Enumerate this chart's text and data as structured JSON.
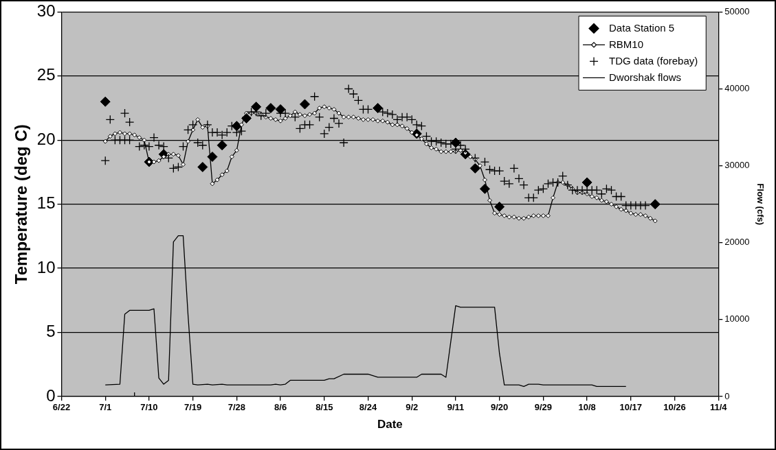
{
  "chart_data": {
    "type": "line",
    "xlabel": "Date",
    "ylabel": "Temperature (deg C)",
    "y2label": "Flow (cfs)",
    "xlim": [
      "--06-22",
      "--11-04"
    ],
    "xticks": [
      {
        "value": "--06-22",
        "label": "6/22"
      },
      {
        "value": "--07-01",
        "label": "7/1"
      },
      {
        "value": "--07-10",
        "label": "7/10"
      },
      {
        "value": "--07-19",
        "label": "7/19"
      },
      {
        "value": "--07-28",
        "label": "7/28"
      },
      {
        "value": "--08-06",
        "label": "8/6"
      },
      {
        "value": "--08-15",
        "label": "8/15"
      },
      {
        "value": "--08-24",
        "label": "8/24"
      },
      {
        "value": "--09-02",
        "label": "9/2"
      },
      {
        "value": "--09-11",
        "label": "9/11"
      },
      {
        "value": "--09-20",
        "label": "9/20"
      },
      {
        "value": "--09-29",
        "label": "9/29"
      },
      {
        "value": "--10-08",
        "label": "10/8"
      },
      {
        "value": "--10-17",
        "label": "10/17"
      },
      {
        "value": "--10-26",
        "label": "10/26"
      },
      {
        "value": "--11-04",
        "label": "11/4"
      }
    ],
    "ylim": [
      0,
      30
    ],
    "yticks": [
      0,
      5,
      10,
      15,
      20,
      25,
      30
    ],
    "y2lim": [
      0,
      50000
    ],
    "y2ticks": [
      0,
      10000,
      20000,
      30000,
      40000,
      50000
    ],
    "grid": "y",
    "legend": "top right",
    "series": [
      {
        "name": "Data Station 5",
        "type": "scatter",
        "marker": "diamond",
        "color": "#000000",
        "x": [
          "--07-01",
          "--07-10",
          "--07-13",
          "--07-21",
          "--07-23",
          "--07-25",
          "--07-28",
          "--07-30",
          "--08-01",
          "--08-04",
          "--08-06",
          "--08-11",
          "--08-26",
          "--09-03",
          "--09-11",
          "--09-13",
          "--09-15",
          "--09-17",
          "--09-20",
          "--10-08",
          "--10-22"
        ],
        "values": [
          23.0,
          18.3,
          18.9,
          17.9,
          18.7,
          19.6,
          21.1,
          21.7,
          22.6,
          22.5,
          22.4,
          22.8,
          22.5,
          20.5,
          19.8,
          18.9,
          17.8,
          16.2,
          14.8,
          16.7,
          15.0
        ]
      },
      {
        "name": "RBM10",
        "type": "line",
        "marker": "diamond",
        "color": "#000000",
        "x": [
          "--07-01",
          "--07-02",
          "--07-03",
          "--07-04",
          "--07-05",
          "--07-06",
          "--07-07",
          "--07-08",
          "--07-09",
          "--07-10",
          "--07-11",
          "--07-12",
          "--07-13",
          "--07-14",
          "--07-15",
          "--07-16",
          "--07-17",
          "--07-18",
          "--07-19",
          "--07-20",
          "--07-21",
          "--07-22",
          "--07-23",
          "--07-24",
          "--07-25",
          "--07-26",
          "--07-27",
          "--07-28",
          "--07-29",
          "--07-30",
          "--07-31",
          "--08-01",
          "--08-02",
          "--08-03",
          "--08-04",
          "--08-05",
          "--08-06",
          "--08-07",
          "--08-08",
          "--08-09",
          "--08-10",
          "--08-11",
          "--08-12",
          "--08-13",
          "--08-14",
          "--08-15",
          "--08-16",
          "--08-17",
          "--08-18",
          "--08-19",
          "--08-20",
          "--08-21",
          "--08-22",
          "--08-23",
          "--08-24",
          "--08-25",
          "--08-26",
          "--08-27",
          "--08-28",
          "--08-29",
          "--08-30",
          "--08-31",
          "--09-01",
          "--09-02",
          "--09-03",
          "--09-04",
          "--09-05",
          "--09-06",
          "--09-07",
          "--09-08",
          "--09-09",
          "--09-10",
          "--09-11",
          "--09-12",
          "--09-13",
          "--09-14",
          "--09-15",
          "--09-16",
          "--09-17",
          "--09-18",
          "--09-19",
          "--09-20",
          "--09-21",
          "--09-22",
          "--09-23",
          "--09-24",
          "--09-25",
          "--09-26",
          "--09-27",
          "--09-28",
          "--09-29",
          "--09-30",
          "--10-01",
          "--10-02",
          "--10-03",
          "--10-04",
          "--10-05",
          "--10-06",
          "--10-07",
          "--10-08",
          "--10-09",
          "--10-10",
          "--10-11",
          "--10-12",
          "--10-13",
          "--10-14",
          "--10-15",
          "--10-16",
          "--10-17",
          "--10-18",
          "--10-19",
          "--10-20",
          "--10-21",
          "--10-22"
        ],
        "values": [
          19.9,
          20.3,
          20.5,
          20.6,
          20.5,
          20.5,
          20.4,
          20.2,
          20.0,
          18.3,
          18.3,
          18.4,
          18.7,
          18.9,
          18.9,
          18.8,
          18.1,
          19.9,
          20.8,
          21.6,
          21.0,
          21.1,
          16.6,
          16.9,
          17.3,
          17.6,
          18.7,
          19.2,
          21.2,
          22.1,
          22.1,
          22.1,
          22.0,
          21.8,
          21.7,
          21.6,
          21.5,
          21.7,
          21.9,
          22.2,
          22.0,
          21.9,
          22.0,
          22.1,
          22.5,
          22.6,
          22.5,
          22.4,
          22.1,
          21.8,
          21.8,
          21.8,
          21.7,
          21.6,
          21.6,
          21.6,
          21.5,
          21.5,
          21.4,
          21.2,
          21.2,
          21.1,
          20.9,
          20.6,
          20.4,
          20.1,
          19.7,
          19.4,
          19.3,
          19.1,
          19.1,
          19.1,
          19.1,
          19.2,
          19.0,
          18.7,
          18.5,
          18.0,
          16.9,
          15.3,
          14.3,
          14.2,
          14.1,
          14.0,
          14.0,
          13.9,
          13.9,
          14.0,
          14.1,
          14.1,
          14.1,
          14.1,
          15.5,
          16.7,
          16.7,
          16.5,
          16.2,
          15.9,
          15.9,
          15.8,
          15.6,
          15.5,
          15.3,
          15.2,
          15.0,
          14.8,
          14.6,
          14.5,
          14.3,
          14.2,
          14.2,
          14.1,
          13.9,
          13.7
        ]
      },
      {
        "name": "TDG data (forebay)",
        "type": "scatter",
        "marker": "cross",
        "color": "#000000",
        "x": [
          "--07-01",
          "--07-02",
          "--07-03",
          "--07-04",
          "--07-05",
          "--07-05",
          "--07-06",
          "--07-06",
          "--07-07",
          "--07-08",
          "--07-09",
          "--07-10",
          "--07-11",
          "--07-12",
          "--07-13",
          "--07-14",
          "--07-15",
          "--07-16",
          "--07-17",
          "--07-18",
          "--07-19",
          "--07-20",
          "--07-21",
          "--07-22",
          "--07-23",
          "--07-24",
          "--07-25",
          "--07-26",
          "--07-27",
          "--07-28",
          "--07-29",
          "--07-30",
          "--07-31",
          "--08-01",
          "--08-02",
          "--08-03",
          "--08-06",
          "--08-07",
          "--08-09",
          "--08-10",
          "--08-11",
          "--08-12",
          "--08-13",
          "--08-14",
          "--08-15",
          "--08-16",
          "--08-17",
          "--08-18",
          "--08-19",
          "--08-20",
          "--08-21",
          "--08-22",
          "--08-23",
          "--08-24",
          "--08-27",
          "--08-28",
          "--08-29",
          "--08-30",
          "--08-31",
          "--09-01",
          "--09-02",
          "--09-03",
          "--09-04",
          "--09-05",
          "--09-06",
          "--09-07",
          "--09-08",
          "--09-09",
          "--09-10",
          "--09-11",
          "--09-12",
          "--09-13",
          "--09-15",
          "--09-17",
          "--09-18",
          "--09-19",
          "--09-20",
          "--09-21",
          "--09-22",
          "--09-23",
          "--09-24",
          "--09-25",
          "--09-26",
          "--09-27",
          "--09-28",
          "--09-29",
          "--09-30",
          "--10-01",
          "--10-02",
          "--10-03",
          "--10-04",
          "--10-05",
          "--10-06",
          "--10-07",
          "--10-08",
          "--10-09",
          "--10-10",
          "--10-11",
          "--10-12",
          "--10-13",
          "--10-14",
          "--10-15",
          "--10-16",
          "--10-17",
          "--10-18",
          "--10-19",
          "--10-20"
        ],
        "values": [
          18.4,
          21.6,
          20.0,
          20.0,
          22.1,
          20.0,
          21.4,
          20.0,
          0,
          19.5,
          19.6,
          19.5,
          20.2,
          19.6,
          19.5,
          18.6,
          17.8,
          17.9,
          19.5,
          20.8,
          21.2,
          19.8,
          19.6,
          21.2,
          20.6,
          20.6,
          20.4,
          20.6,
          21.1,
          20.6,
          20.7,
          21.8,
          22.2,
          22.2,
          21.9,
          22.1,
          22.1,
          22.1,
          21.8,
          20.9,
          21.2,
          21.2,
          23.4,
          21.8,
          20.5,
          21.0,
          21.7,
          21.3,
          19.8,
          24.0,
          23.6,
          23.1,
          22.4,
          22.4,
          22.2,
          22.1,
          22.0,
          21.6,
          21.8,
          21.8,
          21.6,
          21.2,
          21.1,
          20.3,
          19.9,
          19.9,
          19.8,
          19.7,
          19.7,
          19.3,
          19.6,
          19.3,
          18.6,
          18.3,
          17.7,
          17.6,
          17.6,
          16.8,
          16.6,
          17.8,
          17.0,
          16.5,
          15.5,
          15.5,
          16.1,
          16.2,
          16.6,
          16.7,
          16.7,
          17.2,
          16.5,
          16.1,
          16.1,
          16.1,
          16.1,
          16.1,
          16.1,
          15.8,
          16.2,
          16.1,
          15.6,
          15.6,
          14.9,
          14.9,
          14.9,
          14.9,
          14.9
        ]
      },
      {
        "name": "Dworshak flows",
        "type": "line",
        "marker": "none",
        "axis": "y2",
        "color": "#000000",
        "x": [
          "--07-01",
          "--07-04",
          "--07-05",
          "--07-06",
          "--07-10",
          "--07-11",
          "--07-12",
          "--07-13",
          "--07-14",
          "--07-15",
          "--07-16",
          "--07-17",
          "--07-18",
          "--07-19",
          "--07-20",
          "--07-22",
          "--07-23",
          "--07-25",
          "--07-26",
          "--08-04",
          "--08-05",
          "--08-06",
          "--08-07",
          "--08-08",
          "--08-15",
          "--08-16",
          "--08-17",
          "--08-19",
          "--08-24",
          "--08-26",
          "--09-03",
          "--09-04",
          "--09-08",
          "--09-09",
          "--09-11",
          "--09-12",
          "--09-19",
          "--09-20",
          "--09-21",
          "--09-24",
          "--09-25",
          "--09-26",
          "--09-28",
          "--09-29",
          "--10-09",
          "--10-10",
          "--10-16"
        ],
        "values": [
          1500,
          1600,
          10700,
          11200,
          11200,
          11400,
          2400,
          1600,
          2100,
          20100,
          20900,
          20900,
          10600,
          1600,
          1500,
          1600,
          1500,
          1600,
          1500,
          1500,
          1600,
          1500,
          1600,
          2100,
          2100,
          2300,
          2300,
          2900,
          2900,
          2500,
          2500,
          2900,
          2900,
          2500,
          11800,
          11600,
          11600,
          5600,
          1500,
          1500,
          1300,
          1600,
          1600,
          1500,
          1500,
          1300,
          1300
        ]
      }
    ]
  }
}
